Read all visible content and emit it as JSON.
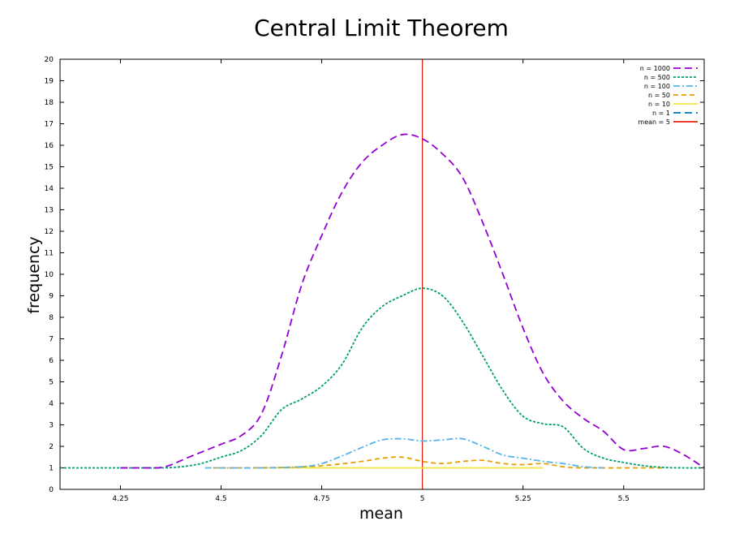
{
  "chart_data": {
    "type": "line",
    "title": "Central Limit Theorem",
    "xlabel": "mean",
    "ylabel": "frequency",
    "xlim": [
      4.1,
      5.7
    ],
    "ylim": [
      0,
      20
    ],
    "xticks": [
      4.25,
      4.5,
      4.75,
      5,
      5.25,
      5.5
    ],
    "xtick_labels": [
      "4.25",
      "4.5",
      "4.75",
      "5",
      "5.25",
      "5.5"
    ],
    "yticks": [
      0,
      1,
      2,
      3,
      4,
      5,
      6,
      7,
      8,
      9,
      10,
      11,
      12,
      13,
      14,
      15,
      16,
      17,
      18,
      19,
      20
    ],
    "ytick_labels": [
      "0",
      "1",
      "2",
      "3",
      "4",
      "5",
      "6",
      "7",
      "8",
      "9",
      "10",
      "11",
      "12",
      "13",
      "14",
      "15",
      "16",
      "17",
      "18",
      "19",
      "20"
    ],
    "grid": false,
    "legend_position": "top-right",
    "series": [
      {
        "name": "n = 1000",
        "color": "#9400d3",
        "dash": "long-dash",
        "x": [
          4.25,
          4.3,
          4.36,
          4.42,
          4.5,
          4.55,
          4.6,
          4.65,
          4.7,
          4.75,
          4.8,
          4.85,
          4.9,
          4.95,
          5.0,
          5.05,
          5.1,
          5.15,
          5.2,
          5.25,
          5.3,
          5.35,
          5.4,
          5.45,
          5.5,
          5.55,
          5.6,
          5.65,
          5.7
        ],
        "y": [
          1.0,
          1.0,
          1.05,
          1.5,
          2.1,
          2.5,
          3.5,
          6.2,
          9.5,
          11.8,
          13.8,
          15.2,
          16.0,
          16.5,
          16.3,
          15.6,
          14.5,
          12.4,
          10.0,
          7.5,
          5.4,
          4.1,
          3.3,
          2.7,
          1.85,
          1.9,
          2.0,
          1.6,
          1.0
        ]
      },
      {
        "name": "n = 500",
        "color": "#009e73",
        "dash": "short-dash",
        "x": [
          4.1,
          4.2,
          4.3,
          4.35,
          4.4,
          4.45,
          4.5,
          4.55,
          4.6,
          4.65,
          4.7,
          4.75,
          4.8,
          4.85,
          4.9,
          4.95,
          5.0,
          5.05,
          5.1,
          5.15,
          5.2,
          5.25,
          5.3,
          5.35,
          5.4,
          5.45,
          5.5,
          5.55,
          5.6,
          5.65,
          5.7
        ],
        "y": [
          1.0,
          1.0,
          1.0,
          1.0,
          1.05,
          1.2,
          1.5,
          1.8,
          2.5,
          3.7,
          4.2,
          4.8,
          5.8,
          7.5,
          8.5,
          9.0,
          9.35,
          9.0,
          7.8,
          6.2,
          4.6,
          3.4,
          3.05,
          2.9,
          1.9,
          1.45,
          1.25,
          1.1,
          1.02,
          1.0,
          1.0
        ]
      },
      {
        "name": "n = 100",
        "color": "#56b4e9",
        "dash": "dash-dot",
        "x": [
          4.46,
          4.5,
          4.6,
          4.7,
          4.75,
          4.8,
          4.85,
          4.9,
          4.95,
          5.0,
          5.05,
          5.1,
          5.15,
          5.2,
          5.25,
          5.3,
          5.35,
          5.4,
          5.45
        ],
        "y": [
          1.0,
          1.0,
          1.0,
          1.05,
          1.2,
          1.55,
          1.95,
          2.3,
          2.35,
          2.25,
          2.3,
          2.35,
          2.0,
          1.6,
          1.45,
          1.3,
          1.2,
          1.05,
          1.0
        ]
      },
      {
        "name": "n = 50",
        "color": "#e69f00",
        "dash": "dash",
        "x": [
          4.48,
          4.55,
          4.65,
          4.75,
          4.85,
          4.9,
          4.95,
          5.0,
          5.05,
          5.1,
          5.15,
          5.2,
          5.25,
          5.3,
          5.35,
          5.4,
          5.5,
          5.6
        ],
        "y": [
          1.0,
          1.0,
          1.02,
          1.1,
          1.3,
          1.45,
          1.5,
          1.3,
          1.2,
          1.3,
          1.35,
          1.2,
          1.15,
          1.2,
          1.05,
          1.0,
          1.0,
          1.0
        ]
      },
      {
        "name": "n = 10",
        "color": "#f0e442",
        "dash": "solid",
        "x": [
          4.6,
          4.8,
          5.0,
          5.2,
          5.3
        ],
        "y": [
          1.0,
          1.0,
          1.0,
          1.0,
          1.0
        ]
      },
      {
        "name": "n = 1",
        "color": "#0072b2",
        "dash": "long-dash",
        "x": [
          4.25,
          4.35
        ],
        "y": [
          1.0,
          1.0
        ]
      },
      {
        "name": "mean = 5",
        "color": "#e51e10",
        "dash": "solid",
        "x": [
          5.0,
          5.0
        ],
        "y": [
          0,
          20
        ]
      }
    ]
  }
}
